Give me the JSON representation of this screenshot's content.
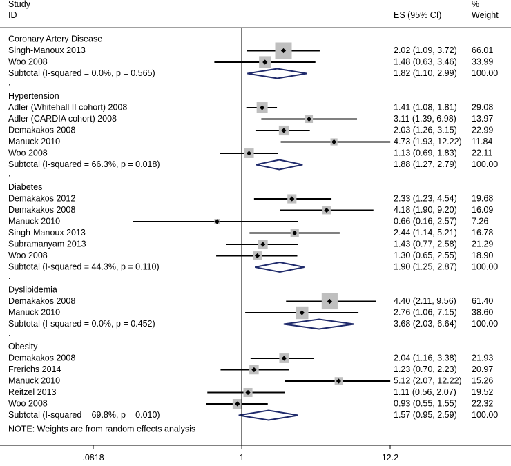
{
  "chart_data": {
    "type": "forest",
    "scale": "log",
    "header": {
      "study_line1": "Study",
      "study_line2": "ID",
      "es_label": "ES (95% CI)",
      "weight_line1": "%",
      "weight_line2": "Weight"
    },
    "x_axis": {
      "min": 0.0818,
      "max": 12.2,
      "ticks": [
        {
          "value": 0.0818,
          "label": ".0818"
        },
        {
          "value": 1,
          "label": "1"
        },
        {
          "value": 12.2,
          "label": "12.2"
        }
      ],
      "null_line": 1
    },
    "groups": [
      {
        "name": "Coronary Artery Disease",
        "studies": [
          {
            "label": "Singh-Manoux 2013",
            "es": 2.02,
            "lo": 1.09,
            "hi": 3.72,
            "es_text": "2.02 (1.09, 3.72)",
            "weight": "66.01"
          },
          {
            "label": "Woo 2008",
            "es": 1.48,
            "lo": 0.63,
            "hi": 3.46,
            "es_text": "1.48 (0.63, 3.46)",
            "weight": "33.99"
          }
        ],
        "subtotal": {
          "label": "Subtotal  (I-squared = 0.0%, p = 0.565)",
          "es": 1.82,
          "lo": 1.1,
          "hi": 2.99,
          "es_text": "1.82 (1.10, 2.99)",
          "weight": "100.00"
        }
      },
      {
        "name": "Hypertension",
        "studies": [
          {
            "label": "Adler  (Whitehall II cohort) 2008",
            "es": 1.41,
            "lo": 1.08,
            "hi": 1.81,
            "es_text": "1.41 (1.08, 1.81)",
            "weight": "29.08"
          },
          {
            "label": "Adler  (CARDIA cohort) 2008",
            "es": 3.11,
            "lo": 1.39,
            "hi": 6.98,
            "es_text": "3.11 (1.39, 6.98)",
            "weight": "13.97"
          },
          {
            "label": "Demakakos 2008",
            "es": 2.03,
            "lo": 1.26,
            "hi": 3.15,
            "es_text": "2.03 (1.26, 3.15)",
            "weight": "22.99"
          },
          {
            "label": "Manuck 2010",
            "es": 4.73,
            "lo": 1.93,
            "hi": 12.22,
            "es_text": "4.73 (1.93, 12.22)",
            "weight": "11.84"
          },
          {
            "label": "Woo 2008",
            "es": 1.13,
            "lo": 0.69,
            "hi": 1.83,
            "es_text": "1.13 (0.69, 1.83)",
            "weight": "22.11"
          }
        ],
        "subtotal": {
          "label": "Subtotal  (I-squared = 66.3%, p = 0.018)",
          "es": 1.88,
          "lo": 1.27,
          "hi": 2.79,
          "es_text": "1.88 (1.27, 2.79)",
          "weight": "100.00"
        }
      },
      {
        "name": "Diabetes",
        "studies": [
          {
            "label": "Demakakos 2012",
            "es": 2.33,
            "lo": 1.23,
            "hi": 4.54,
            "es_text": "2.33 (1.23, 4.54)",
            "weight": "19.68"
          },
          {
            "label": "Demakakos 2008",
            "es": 4.18,
            "lo": 1.9,
            "hi": 9.2,
            "es_text": "4.18 (1.90, 9.20)",
            "weight": "16.09"
          },
          {
            "label": "Manuck 2010",
            "es": 0.66,
            "lo": 0.16,
            "hi": 2.57,
            "es_text": "0.66 (0.16, 2.57)",
            "weight": "7.26"
          },
          {
            "label": "Singh-Manoux 2013",
            "es": 2.44,
            "lo": 1.14,
            "hi": 5.21,
            "es_text": "2.44 (1.14, 5.21)",
            "weight": "16.78"
          },
          {
            "label": "Subramanyam 2013",
            "es": 1.43,
            "lo": 0.77,
            "hi": 2.58,
            "es_text": "1.43 (0.77, 2.58)",
            "weight": "21.29"
          },
          {
            "label": "Woo 2008",
            "es": 1.3,
            "lo": 0.65,
            "hi": 2.55,
            "es_text": "1.30 (0.65, 2.55)",
            "weight": "18.90"
          }
        ],
        "subtotal": {
          "label": "Subtotal  (I-squared = 44.3%, p = 0.110)",
          "es": 1.9,
          "lo": 1.25,
          "hi": 2.87,
          "es_text": "1.90 (1.25, 2.87)",
          "weight": "100.00"
        }
      },
      {
        "name": "Dyslipidemia",
        "studies": [
          {
            "label": "Demakakos 2008",
            "es": 4.4,
            "lo": 2.11,
            "hi": 9.56,
            "es_text": "4.40 (2.11, 9.56)",
            "weight": "61.40"
          },
          {
            "label": "Manuck 2010",
            "es": 2.76,
            "lo": 1.06,
            "hi": 7.15,
            "es_text": "2.76 (1.06, 7.15)",
            "weight": "38.60"
          }
        ],
        "subtotal": {
          "label": "Subtotal  (I-squared = 0.0%, p = 0.452)",
          "es": 3.68,
          "lo": 2.03,
          "hi": 6.64,
          "es_text": "3.68 (2.03, 6.64)",
          "weight": "100.00"
        }
      },
      {
        "name": "Obesity",
        "studies": [
          {
            "label": "Demakakos 2008",
            "es": 2.04,
            "lo": 1.16,
            "hi": 3.38,
            "es_text": "2.04 (1.16, 3.38)",
            "weight": "21.93"
          },
          {
            "label": "Frerichs 2014",
            "es": 1.23,
            "lo": 0.7,
            "hi": 2.23,
            "es_text": "1.23 (0.70, 2.23)",
            "weight": "20.97"
          },
          {
            "label": "Manuck 2010",
            "es": 5.12,
            "lo": 2.07,
            "hi": 12.22,
            "es_text": "5.12 (2.07, 12.22)",
            "weight": "15.26"
          },
          {
            "label": "Reitzel 2013",
            "es": 1.11,
            "lo": 0.56,
            "hi": 2.07,
            "es_text": "1.11 (0.56, 2.07)",
            "weight": "19.52"
          },
          {
            "label": "Woo 2008",
            "es": 0.93,
            "lo": 0.55,
            "hi": 1.55,
            "es_text": "0.93 (0.55, 1.55)",
            "weight": "22.32"
          }
        ],
        "subtotal": {
          "label": "Subtotal  (I-squared = 69.8%, p = 0.010)",
          "es": 1.57,
          "lo": 0.95,
          "hi": 2.59,
          "es_text": "1.57 (0.95, 2.59)",
          "weight": "100.00"
        }
      }
    ],
    "group_spacer": ".",
    "note": "NOTE: Weights are from random effects analysis"
  }
}
